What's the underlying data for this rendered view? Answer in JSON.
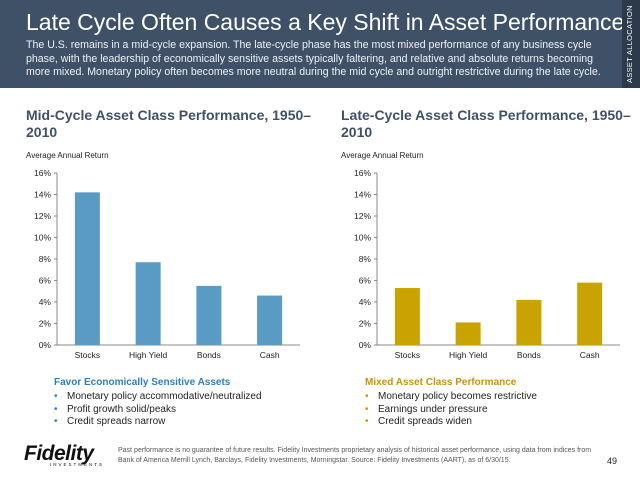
{
  "header": {
    "title": "Late Cycle Often Causes a Key Shift in Asset Performance",
    "subtitle": "The U.S. remains in a mid-cycle expansion. The late-cycle phase has the most mixed performance of any business cycle phase, with the leadership of economically sensitive assets typically faltering, and relative and absolute returns becoming more mixed. Monetary policy often becomes more neutral during the mid cycle and outright restrictive during the late cycle.",
    "side_tab": "ASSET ALLOCATION"
  },
  "colors": {
    "header_bg": "#3f5167",
    "mid_cycle_bar": "#5a9bc4",
    "late_cycle_bar": "#c9a400",
    "mid_takeaway": "#2d7fb8",
    "late_takeaway": "#c9920a"
  },
  "chart_data": [
    {
      "type": "bar",
      "title": "Mid-Cycle Asset Class Performance, 1950–2010",
      "ylabel": "Average Annual Return",
      "categories": [
        "Stocks",
        "High Yield",
        "Bonds",
        "Cash"
      ],
      "values": [
        14.2,
        7.7,
        5.5,
        4.6
      ],
      "ylim": [
        0,
        16
      ],
      "yticks": [
        "0%",
        "2%",
        "4%",
        "6%",
        "8%",
        "10%",
        "12%",
        "14%",
        "16%"
      ],
      "grid": false,
      "color": "#5a9bc4"
    },
    {
      "type": "bar",
      "title": "Late-Cycle Asset Class Performance, 1950–2010",
      "ylabel": "Average Annual Return",
      "categories": [
        "Stocks",
        "High Yield",
        "Bonds",
        "Cash"
      ],
      "values": [
        5.3,
        2.1,
        4.2,
        5.8
      ],
      "ylim": [
        0,
        16
      ],
      "yticks": [
        "0%",
        "2%",
        "4%",
        "6%",
        "8%",
        "10%",
        "12%",
        "14%",
        "16%"
      ],
      "grid": false,
      "color": "#c9a400"
    }
  ],
  "takeaways": {
    "mid": {
      "title": "Favor Economically Sensitive Assets",
      "bullets": [
        "Monetary policy accommodative/neutralized",
        "Profit growth solid/peaks",
        "Credit spreads narrow"
      ]
    },
    "late": {
      "title": "Mixed Asset Class Performance",
      "bullets": [
        "Monetary policy becomes restrictive",
        "Earnings under pressure",
        "Credit spreads widen"
      ]
    }
  },
  "footer": {
    "logo_word": "Fidelity",
    "logo_sub": "INVESTMENTS",
    "footnote": "Past performance is no guarantee of future results. Fidelity Investments proprietary analysis of historical asset performance, using data from indices from Bank of America Merrill Lynch, Barclays, Fidelity Investments, Morningstar. Source: Fidelity Investments (AART), as of 6/30/15.",
    "page_number": "49"
  }
}
